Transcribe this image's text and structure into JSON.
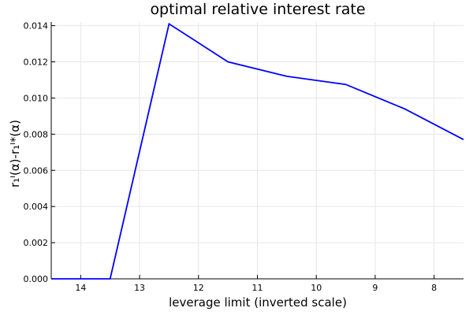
{
  "chart_data": {
    "type": "line",
    "title": "optimal relative interest rate",
    "xlabel": "leverage limit (inverted scale)",
    "ylabel": "r₁ᴵ(α)-r₁ᴵ*(α)",
    "x_inverted": true,
    "xlim": [
      14.5,
      7.5
    ],
    "ylim": [
      0,
      0.0142
    ],
    "x_ticks": [
      14,
      13,
      12,
      11,
      10,
      9,
      8
    ],
    "x_tick_labels": [
      "14",
      "13",
      "12",
      "11",
      "10",
      "9",
      "8"
    ],
    "y_ticks": [
      0,
      0.002,
      0.004,
      0.006,
      0.008,
      0.01,
      0.012,
      0.014
    ],
    "y_tick_labels": [
      "0.000",
      "0.002",
      "0.004",
      "0.006",
      "0.008",
      "0.010",
      "0.012",
      "0.014"
    ],
    "grid": true,
    "legend": false,
    "series": [
      {
        "color": "#0000ff",
        "x": [
          14.5,
          13.5,
          12.5,
          11.5,
          10.5,
          9.5,
          8.5,
          7.5
        ],
        "y": [
          0.0,
          0.0,
          0.0141,
          0.012,
          0.0112,
          0.01075,
          0.0094,
          0.0077
        ]
      }
    ]
  }
}
